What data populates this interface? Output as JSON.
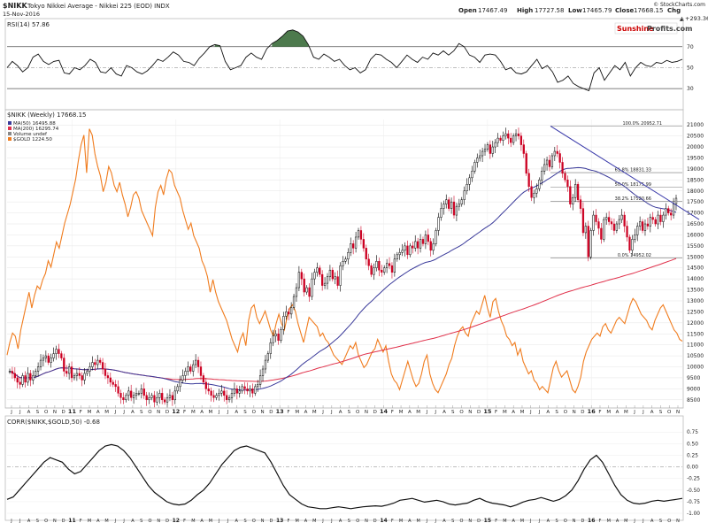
{
  "header": {
    "symbol": "$NIKK",
    "name": "Tokyo Nikkei Average - Nikkei 225 (EOD) INDX",
    "date": "15-Nov-2016",
    "credit": "© StockCharts.com",
    "open_label": "Open",
    "open": "17467.49",
    "high_label": "High",
    "high": "17727.58",
    "low_label": "Low",
    "low": "17465.79",
    "close_label": "Close",
    "close": "17668.15",
    "chg_label": "Chg",
    "chg": "+293.36 (+1.69%)",
    "chg_arrow": "▲",
    "watermark_a": "Sunshine",
    "watermark_b": "Profits.com"
  },
  "colors": {
    "price_up": "#000000",
    "price_down": "#cc0022",
    "ma50": "#3a3a9a",
    "ma200": "#e0304a",
    "gold": "#f07c1e",
    "rsi_fill": "#4d7a4d",
    "trend_line": "#3a3aaa"
  },
  "chart_data": [
    {
      "type": "line",
      "panel": "rsi",
      "title": "RSI(14) 57.86",
      "ylim": [
        0,
        100
      ],
      "ytick_labels": [
        "70",
        "50",
        "30"
      ],
      "overbought": 70,
      "oversold": 30,
      "series": [
        {
          "name": "RSI(14)",
          "values": [
            50,
            56,
            52,
            46,
            50,
            60,
            63,
            56,
            53,
            56,
            57,
            45,
            44,
            50,
            48,
            52,
            58,
            55,
            46,
            45,
            50,
            44,
            42,
            52,
            50,
            46,
            44,
            47,
            52,
            58,
            56,
            60,
            65,
            62,
            56,
            55,
            52,
            59,
            64,
            70,
            72,
            71,
            56,
            48,
            50,
            52,
            60,
            64,
            60,
            58,
            68,
            73,
            76,
            80,
            85,
            86,
            84,
            80,
            72,
            60,
            58,
            63,
            60,
            56,
            58,
            52,
            48,
            50,
            45,
            48,
            58,
            63,
            62,
            58,
            55,
            50,
            56,
            62,
            58,
            55,
            60,
            58,
            64,
            62,
            66,
            62,
            66,
            73,
            70,
            62,
            60,
            55,
            62,
            63,
            62,
            56,
            48,
            50,
            45,
            44,
            46,
            52,
            58,
            49,
            52,
            46,
            36,
            38,
            42,
            35,
            32,
            30,
            28,
            45,
            50,
            38,
            45,
            52,
            48,
            55,
            42,
            50,
            55,
            52,
            51,
            55,
            54,
            57,
            55,
            56,
            58
          ]
        }
      ]
    },
    {
      "type": "candlestick",
      "panel": "price",
      "title": "$NIKK (Weekly) 17668.15",
      "legend": [
        {
          "name": "MA(50) 16495.88",
          "color": "#3a3a9a"
        },
        {
          "name": "MA(200) 16295.74",
          "color": "#e0304a"
        },
        {
          "name": "Volume undef",
          "color": "#888888"
        },
        {
          "name": "$GOLD 1224.50",
          "color": "#f07c1e"
        }
      ],
      "y_tick_labels": [
        "21000",
        "20500",
        "20000",
        "19500",
        "19000",
        "18500",
        "18000",
        "17500",
        "17000",
        "16500",
        "16000",
        "15500",
        "15000",
        "14500",
        "14000",
        "13500",
        "13000",
        "12500",
        "12000",
        "11500",
        "11000",
        "10500",
        "10000",
        "9500",
        "9000",
        "8500"
      ],
      "ylim": [
        8250,
        21250
      ],
      "fib_labels": [
        "100.0% 20952.71",
        "61.8% 18831.33",
        "50.0% 18175.99",
        "38.2% 17520.66",
        "0.0% 14952.02"
      ],
      "fib_levels": [
        20952.71,
        18831.33,
        18175.99,
        17520.66,
        14952.02
      ],
      "x_month_labels": [
        "J",
        "J",
        "A",
        "S",
        "O",
        "N",
        "D",
        "11",
        "F",
        "M",
        "A",
        "M",
        "J",
        "J",
        "A",
        "S",
        "O",
        "N",
        "D",
        "12",
        "F",
        "M",
        "A",
        "M",
        "J",
        "J",
        "A",
        "S",
        "O",
        "N",
        "D",
        "13",
        "F",
        "M",
        "A",
        "M",
        "J",
        "J",
        "A",
        "S",
        "O",
        "N",
        "D",
        "14",
        "F",
        "M",
        "A",
        "M",
        "J",
        "J",
        "A",
        "S",
        "O",
        "N",
        "D",
        "15",
        "F",
        "M",
        "A",
        "M",
        "J",
        "J",
        "A",
        "S",
        "O",
        "N",
        "D",
        "16",
        "F",
        "M",
        "A",
        "M",
        "J",
        "J",
        "A",
        "S",
        "O",
        "N"
      ],
      "year_labels": [
        "11",
        "12",
        "13",
        "14",
        "15",
        "16"
      ],
      "close": [
        9800,
        9700,
        9500,
        9300,
        9200,
        9600,
        9300,
        9700,
        9400,
        9600,
        9800,
        10000,
        10300,
        10400,
        10500,
        10200,
        10400,
        10600,
        10800,
        10600,
        10400,
        9800,
        9700,
        10000,
        9500,
        9600,
        9700,
        9600,
        9400,
        9700,
        9800,
        10000,
        10200,
        10100,
        10300,
        10200,
        9900,
        9600,
        9500,
        9300,
        9200,
        9100,
        8800,
        8600,
        8500,
        8700,
        8900,
        8600,
        8700,
        8800,
        8800,
        9000,
        8700,
        8500,
        8600,
        8700,
        8400,
        8600,
        8800,
        8500,
        8400,
        8600,
        8700,
        8500,
        8900,
        9100,
        9400,
        9600,
        9800,
        10000,
        9800,
        10100,
        10300,
        10000,
        9600,
        9300,
        9000,
        8900,
        8700,
        8600,
        8700,
        8800,
        8900,
        8700,
        8500,
        8600,
        8800,
        9000,
        8800,
        8900,
        9100,
        9000,
        8900,
        9000,
        8800,
        9100,
        9200,
        9600,
        9900,
        10300,
        10600,
        11100,
        11400,
        11500,
        11200,
        11700,
        12300,
        12500,
        12400,
        12700,
        13200,
        13600,
        14300,
        14000,
        13400,
        13600,
        13200,
        14000,
        14300,
        14500,
        14200,
        13700,
        13800,
        14100,
        14400,
        14000,
        14100,
        13700,
        14600,
        14800,
        14900,
        15200,
        15600,
        15400,
        15900,
        16200,
        15800,
        15400,
        14900,
        14600,
        14200,
        14500,
        14800,
        14400,
        14300,
        14500,
        14700,
        14600,
        14300,
        14900,
        15100,
        15200,
        15300,
        15500,
        15100,
        15500,
        15400,
        15700,
        15400,
        15800,
        15600,
        16000,
        15700,
        15300,
        15600,
        16200,
        16800,
        17200,
        17400,
        17600,
        17200,
        17500,
        16900,
        17300,
        17400,
        17600,
        18000,
        18300,
        18600,
        18900,
        19300,
        19500,
        19600,
        19800,
        19900,
        20100,
        19700,
        20000,
        20200,
        20400,
        20300,
        20500,
        20600,
        20400,
        20200,
        20500,
        20600,
        20500,
        20100,
        19700,
        18800,
        18200,
        17700,
        17900,
        18100,
        18500,
        18900,
        19200,
        19400,
        19100,
        19600,
        19800,
        19700,
        19300,
        18800,
        18500,
        18200,
        17400,
        17700,
        18300,
        17600,
        17200,
        16100,
        16400,
        15000,
        16200,
        16900,
        16600,
        16300,
        15800,
        16700,
        16800,
        16600,
        16500,
        16200,
        16500,
        16700,
        16900,
        16400,
        15900,
        15300,
        15800,
        16000,
        16400,
        16600,
        16200,
        16500,
        16400,
        16800,
        16700,
        16500,
        16900,
        16600,
        16900,
        17200,
        17000,
        16900,
        17400,
        17668
      ]
    },
    {
      "type": "line",
      "panel": "price",
      "overlay": "gold",
      "series_name": "$GOLD 1224.50",
      "values": [
        1180,
        1220,
        1250,
        1240,
        1200,
        1260,
        1300,
        1340,
        1380,
        1330,
        1370,
        1400,
        1390,
        1420,
        1440,
        1480,
        1460,
        1500,
        1540,
        1520,
        1560,
        1600,
        1630,
        1660,
        1700,
        1740,
        1800,
        1850,
        1880,
        1760,
        1900,
        1880,
        1820,
        1780,
        1750,
        1700,
        1730,
        1780,
        1760,
        1720,
        1700,
        1730,
        1690,
        1660,
        1620,
        1650,
        1690,
        1700,
        1680,
        1640,
        1620,
        1600,
        1580,
        1560,
        1650,
        1700,
        1720,
        1690,
        1740,
        1770,
        1760,
        1720,
        1700,
        1680,
        1640,
        1610,
        1580,
        1600,
        1560,
        1540,
        1520,
        1480,
        1460,
        1430,
        1380,
        1420,
        1380,
        1350,
        1330,
        1310,
        1290,
        1260,
        1230,
        1210,
        1190,
        1230,
        1250,
        1210,
        1290,
        1330,
        1340,
        1300,
        1280,
        1300,
        1320,
        1290,
        1260,
        1240,
        1280,
        1310,
        1280,
        1260,
        1300,
        1330,
        1340,
        1320,
        1280,
        1250,
        1220,
        1260,
        1300,
        1290,
        1280,
        1270,
        1240,
        1250,
        1230,
        1220,
        1200,
        1180,
        1170,
        1160,
        1150,
        1170,
        1190,
        1210,
        1200,
        1220,
        1180,
        1160,
        1140,
        1150,
        1170,
        1190,
        1200,
        1230,
        1210,
        1190,
        1210,
        1160,
        1120,
        1100,
        1090,
        1070,
        1100,
        1130,
        1160,
        1130,
        1100,
        1080,
        1090,
        1120,
        1160,
        1180,
        1120,
        1090,
        1070,
        1060,
        1080,
        1100,
        1120,
        1150,
        1170,
        1210,
        1240,
        1260,
        1270,
        1250,
        1240,
        1280,
        1300,
        1320,
        1310,
        1340,
        1370,
        1330,
        1300,
        1350,
        1360,
        1320,
        1290,
        1270,
        1240,
        1230,
        1210,
        1220,
        1180,
        1200,
        1160,
        1140,
        1120,
        1130,
        1100,
        1090,
        1070,
        1080,
        1070,
        1060,
        1100,
        1140,
        1160,
        1130,
        1110,
        1120,
        1130,
        1100,
        1070,
        1060,
        1080,
        1110,
        1160,
        1190,
        1210,
        1230,
        1240,
        1250,
        1240,
        1270,
        1280,
        1260,
        1250,
        1270,
        1290,
        1300,
        1290,
        1280,
        1310,
        1340,
        1360,
        1350,
        1330,
        1310,
        1300,
        1290,
        1270,
        1260,
        1290,
        1310,
        1330,
        1340,
        1320,
        1300,
        1280,
        1260,
        1250,
        1230,
        1224
      ]
    },
    {
      "type": "line",
      "panel": "correlation",
      "title": "CORR($NIKK,$GOLD,50) -0.68",
      "ylim": [
        -1.0,
        1.0
      ],
      "ytick_labels": [
        "0.75",
        "0.50",
        "0.25",
        "0.00",
        "-0.25",
        "-0.50",
        "-0.75",
        "-1.00"
      ],
      "series": [
        {
          "name": "CORR($NIKK,$GOLD,50)",
          "values": [
            -0.7,
            -0.65,
            -0.5,
            -0.35,
            -0.2,
            -0.05,
            0.1,
            0.2,
            0.15,
            0.1,
            -0.05,
            -0.15,
            -0.1,
            0.05,
            0.2,
            0.35,
            0.45,
            0.48,
            0.45,
            0.35,
            0.2,
            0.0,
            -0.2,
            -0.4,
            -0.55,
            -0.65,
            -0.75,
            -0.8,
            -0.82,
            -0.8,
            -0.72,
            -0.6,
            -0.5,
            -0.35,
            -0.15,
            0.05,
            0.2,
            0.35,
            0.42,
            0.45,
            0.4,
            0.35,
            0.3,
            0.1,
            -0.15,
            -0.4,
            -0.6,
            -0.7,
            -0.8,
            -0.86,
            -0.88,
            -0.9,
            -0.9,
            -0.88,
            -0.86,
            -0.88,
            -0.9,
            -0.88,
            -0.86,
            -0.85,
            -0.84,
            -0.85,
            -0.82,
            -0.78,
            -0.72,
            -0.7,
            -0.68,
            -0.72,
            -0.76,
            -0.74,
            -0.72,
            -0.75,
            -0.8,
            -0.82,
            -0.8,
            -0.78,
            -0.72,
            -0.68,
            -0.74,
            -0.78,
            -0.8,
            -0.82,
            -0.86,
            -0.82,
            -0.76,
            -0.72,
            -0.7,
            -0.66,
            -0.7,
            -0.74,
            -0.7,
            -0.62,
            -0.5,
            -0.3,
            -0.05,
            0.15,
            0.25,
            0.1,
            -0.15,
            -0.4,
            -0.6,
            -0.72,
            -0.78,
            -0.8,
            -0.78,
            -0.74,
            -0.72,
            -0.74,
            -0.72,
            -0.7,
            -0.68
          ]
        }
      ]
    }
  ]
}
